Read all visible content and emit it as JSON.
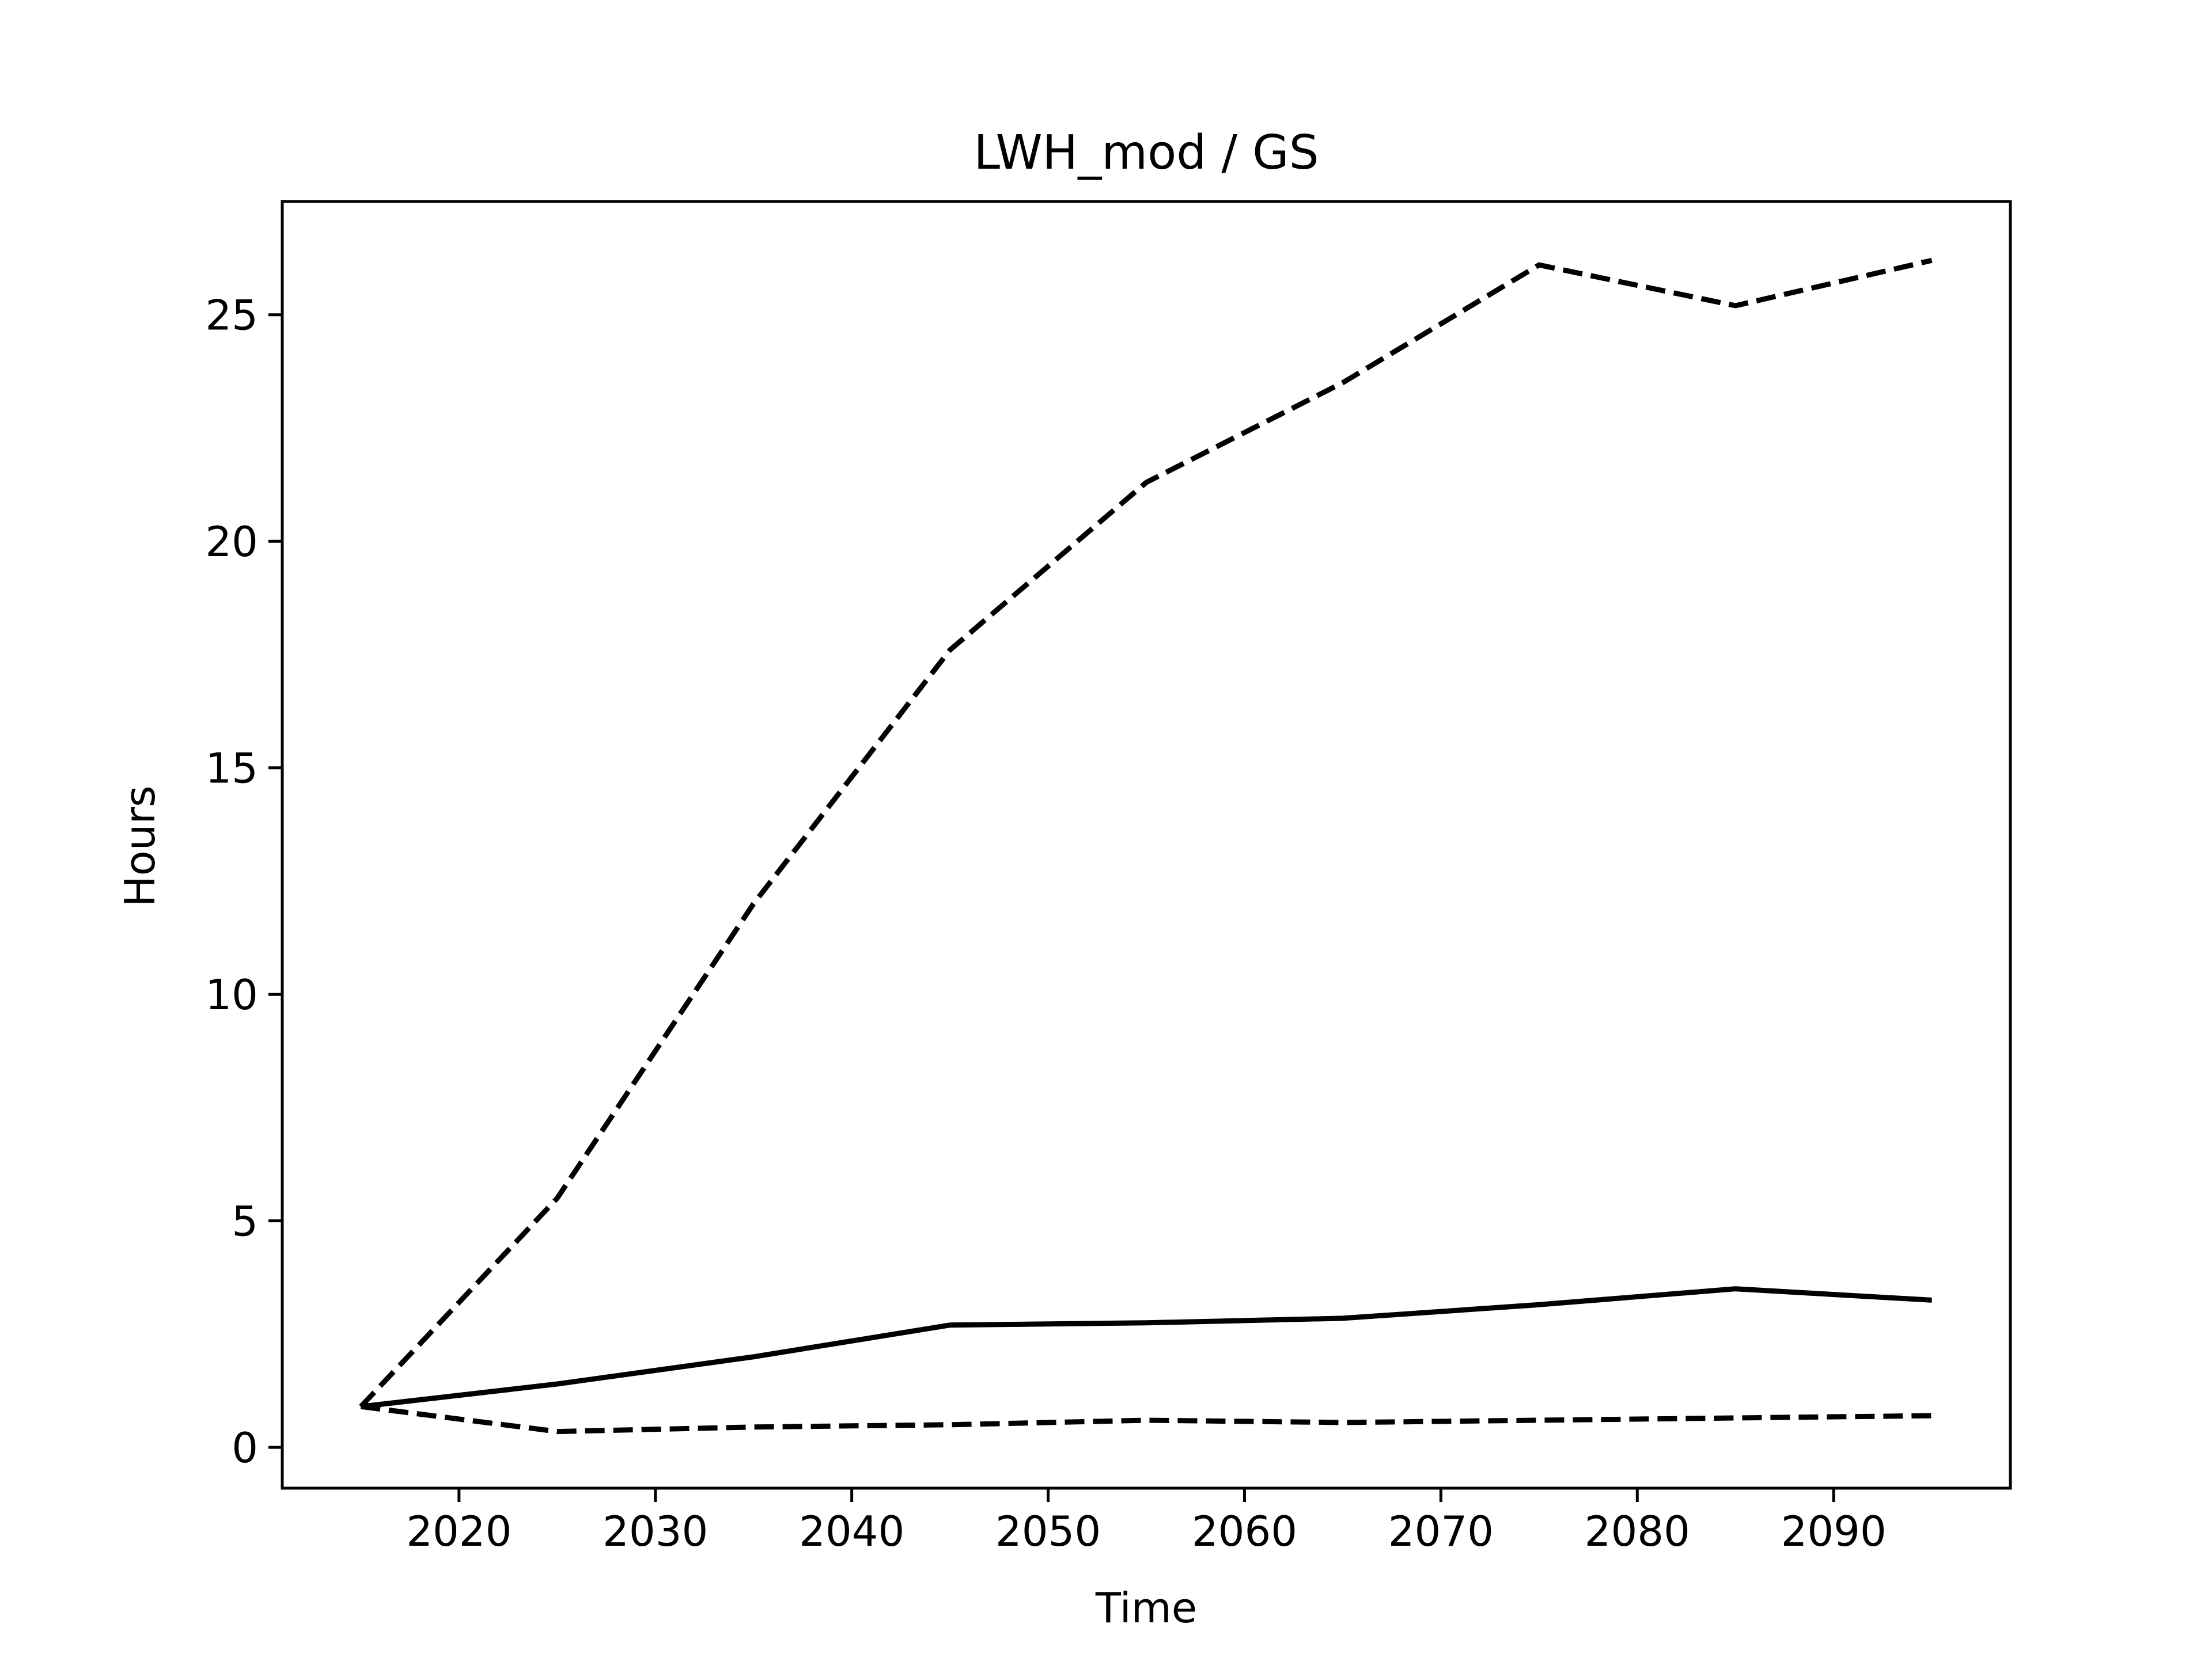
{
  "colors": {
    "background": "#ffffff",
    "line": "#000000",
    "axes": "#000000"
  },
  "chart_data": {
    "type": "line",
    "title": "LWH_mod / GS",
    "xlabel": "Time",
    "ylabel": "Hours",
    "xlim": [
      2011,
      2099
    ],
    "ylim": [
      -0.9,
      27.5
    ],
    "xticks": [
      2020,
      2030,
      2040,
      2050,
      2060,
      2070,
      2080,
      2090
    ],
    "yticks": [
      0,
      5,
      10,
      15,
      20,
      25
    ],
    "grid": false,
    "legend": "none",
    "series": [
      {
        "style": "dashed",
        "x": [
          2015,
          2025,
          2035,
          2045,
          2055,
          2065,
          2075,
          2085,
          2095
        ],
        "y": [
          0.9,
          5.5,
          12.0,
          17.6,
          21.3,
          23.5,
          26.1,
          25.2,
          26.2
        ]
      },
      {
        "style": "solid",
        "x": [
          2015,
          2025,
          2035,
          2045,
          2055,
          2065,
          2075,
          2085,
          2095
        ],
        "y": [
          0.9,
          1.4,
          2.0,
          2.7,
          2.75,
          2.85,
          3.15,
          3.5,
          3.25
        ]
      },
      {
        "style": "dashed",
        "x": [
          2015,
          2025,
          2035,
          2045,
          2055,
          2065,
          2075,
          2085,
          2095
        ],
        "y": [
          0.9,
          0.35,
          0.45,
          0.5,
          0.6,
          0.55,
          0.6,
          0.65,
          0.7
        ]
      }
    ]
  }
}
